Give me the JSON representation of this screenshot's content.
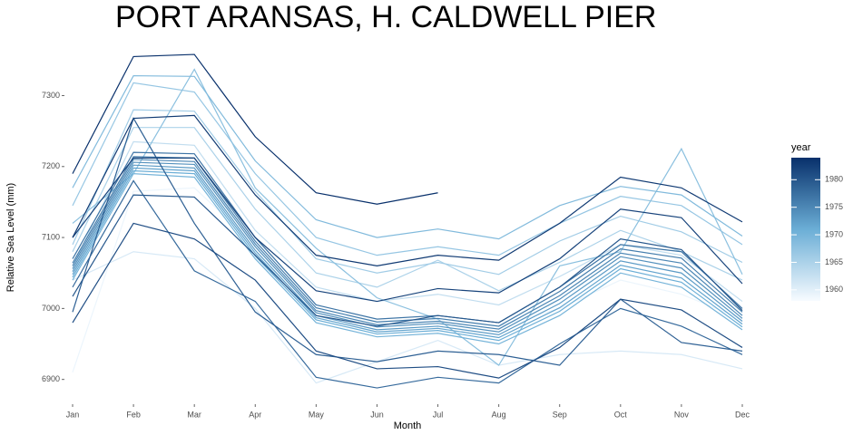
{
  "chart_data": {
    "type": "line",
    "title": "PORT ARANSAS,  H. CALDWELL PIER",
    "x_label": "Month",
    "y_label": "Relative Sea Level (mm)",
    "categories": [
      "Jan",
      "Feb",
      "Mar",
      "Apr",
      "May",
      "Jun",
      "Jul",
      "Aug",
      "Sep",
      "Oct",
      "Nov",
      "Dec"
    ],
    "ylim": [
      6860,
      7390
    ],
    "yticks": [
      6900,
      7000,
      7100,
      7200,
      7300
    ],
    "color_legend": {
      "title": "year",
      "clim": [
        1958,
        1984
      ],
      "ticks": [
        1960,
        1965,
        1970,
        1975,
        1980
      ],
      "colors": [
        "#f7fbff",
        "#6baed6",
        "#08306b"
      ]
    },
    "series": [
      {
        "year": 1959,
        "values": [
          6910,
          7165,
          7170,
          7090,
          7000,
          6980,
          6985,
          6975,
          7000,
          7040,
          7020,
          6985
        ]
      },
      {
        "year": 1961,
        "values": [
          7040,
          7080,
          7070,
          7000,
          6895,
          6925,
          6955,
          6920,
          6935,
          6940,
          6935,
          6915
        ]
      },
      {
        "year": 1963,
        "values": [
          7060,
          7235,
          7230,
          7110,
          7030,
          7010,
          7020,
          7005,
          7045,
          7090,
          7075,
          7010
        ]
      },
      {
        "year": 1965,
        "values": [
          7080,
          7255,
          7255,
          7140,
          7050,
          7030,
          7068,
          7025,
          7065,
          7110,
          7080,
          7040
        ]
      },
      {
        "year": 1966,
        "values": [
          7090,
          7280,
          7278,
          7165,
          7070,
          7050,
          7065,
          7048,
          7095,
          7130,
          7108,
          7065
        ]
      },
      {
        "year": 1967,
        "values": [
          7145,
          7318,
          7305,
          7190,
          7100,
          7075,
          7087,
          7075,
          7120,
          7158,
          7145,
          7090
        ]
      },
      {
        "year": 1968,
        "values": [
          7120,
          7190,
          7337,
          7170,
          7085,
          7015,
          6985,
          6920,
          7060,
          7080,
          7225,
          7048
        ]
      },
      {
        "year": 1969,
        "values": [
          7170,
          7328,
          7327,
          7208,
          7125,
          7100,
          7112,
          7098,
          7145,
          7172,
          7160,
          7102
        ]
      },
      {
        "year": 1970,
        "values": [
          7040,
          7190,
          7185,
          7070,
          6980,
          6960,
          6965,
          6950,
          6990,
          7050,
          7030,
          6970
        ]
      },
      {
        "year": 1971,
        "values": [
          7044,
          7194,
          7190,
          7074,
          6984,
          6964,
          6969,
          6955,
          6996,
          7056,
          7037,
          6974
        ]
      },
      {
        "year": 1972,
        "values": [
          7048,
          7198,
          7194,
          7078,
          6987,
          6967,
          6972,
          6959,
          7001,
          7061,
          7043,
          6978
        ]
      },
      {
        "year": 1973,
        "values": [
          7052,
          7202,
          7198,
          7082,
          6990,
          6970,
          6975,
          6963,
          7007,
          7067,
          7050,
          6982
        ]
      },
      {
        "year": 1974,
        "values": [
          7056,
          7206,
          7203,
          7087,
          6994,
          6974,
          6979,
          6967,
          7013,
          7073,
          7057,
          6986
        ]
      },
      {
        "year": 1975,
        "values": [
          7060,
          7210,
          7207,
          7091,
          6997,
          6977,
          6982,
          6971,
          7018,
          7078,
          7064,
          6990
        ]
      },
      {
        "year": 1976,
        "values": [
          7064,
          7214,
          7212,
          7095,
          7001,
          6981,
          6986,
          6975,
          7024,
          7084,
          7071,
          6995
        ]
      },
      {
        "year": 1977,
        "values": [
          7070,
          7220,
          7218,
          7100,
          7005,
          6985,
          6990,
          6980,
          7030,
          7090,
          7080,
          7000
        ]
      },
      {
        "year": 1978,
        "values": [
          7030,
          7180,
          7053,
          7010,
          6903,
          6888,
          6903,
          6895,
          6950,
          7000,
          6975,
          6935
        ]
      },
      {
        "year": 1979,
        "values": [
          6995,
          7268,
          7120,
          6995,
          6935,
          6925,
          6940,
          6935,
          6920,
          7013,
          6952,
          6940
        ]
      },
      {
        "year": 1980,
        "values": [
          7017,
          7160,
          7157,
          7075,
          6990,
          6975,
          6990,
          6980,
          7030,
          7098,
          7083,
          6997
        ]
      },
      {
        "year": 1981,
        "values": [
          6980,
          7120,
          7098,
          7040,
          6940,
          6915,
          6918,
          6902,
          6945,
          7013,
          6998,
          6945
        ]
      },
      {
        "year": 1982,
        "values": [
          7100,
          7212,
          7212,
          7100,
          7025,
          7010,
          7028,
          7022,
          7070,
          7140,
          7128,
          7035
        ]
      },
      {
        "year": 1983,
        "values": [
          7100,
          7268,
          7272,
          7160,
          7075,
          7060,
          7075,
          7068,
          7120,
          7185,
          7170,
          7122
        ]
      },
      {
        "year": 1984,
        "values": [
          7190,
          7355,
          7358,
          7242,
          7163,
          7147,
          7163,
          null,
          null,
          null,
          null,
          null
        ]
      }
    ]
  }
}
